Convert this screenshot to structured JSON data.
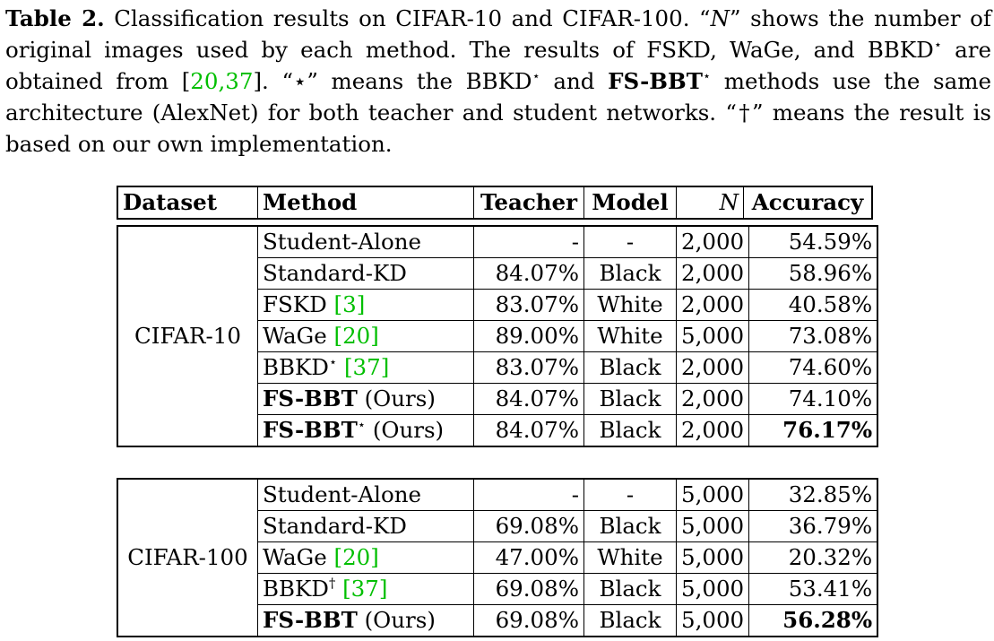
{
  "caption": {
    "label": "Table 2.",
    "text_1": "Classification results on CIFAR-10 and CIFAR-100. “",
    "n_symbol": "N",
    "text_2": "” shows the number of original images used by each method. The results of FSKD, WaGe, and BBKD",
    "star": "⋆",
    "text_3": " are obtained from [",
    "cite_a": "20",
    "sep": ",",
    "cite_b": "37",
    "text_4": "]. “",
    "text_5": "” means the BBKD",
    "text_6": " and ",
    "fs_bbt": "FS-BBT",
    "text_7": " methods use the same architecture (AlexNet) for both teacher and student networks. “",
    "dagger": "†",
    "text_8": "” means the result is based on our own implementation."
  },
  "header": {
    "dataset": "Dataset",
    "method": "Method",
    "teacher": "Teacher",
    "model": "Model",
    "n": "N",
    "accuracy": "Accuracy"
  },
  "groups": [
    {
      "dataset": "CIFAR-10",
      "rows": [
        {
          "method": "Student-Alone",
          "cite": "",
          "mark": "",
          "suffix": "",
          "bold": false,
          "teacher": "-",
          "model": "-",
          "n": "2,000",
          "accuracy": "54.59%"
        },
        {
          "method": "Standard-KD",
          "cite": "",
          "mark": "",
          "suffix": "",
          "bold": false,
          "teacher": "84.07%",
          "model": "Black",
          "n": "2,000",
          "accuracy": "58.96%"
        },
        {
          "method": "FSKD",
          "cite": "3",
          "mark": "",
          "suffix": "",
          "bold": false,
          "teacher": "83.07%",
          "model": "White",
          "n": "2,000",
          "accuracy": "40.58%"
        },
        {
          "method": "WaGe",
          "cite": "20",
          "mark": "",
          "suffix": "",
          "bold": false,
          "teacher": "89.00%",
          "model": "White",
          "n": "5,000",
          "accuracy": "73.08%"
        },
        {
          "method": "BBKD",
          "cite": "37",
          "mark": "⋆",
          "suffix": "",
          "bold": false,
          "teacher": "83.07%",
          "model": "Black",
          "n": "2,000",
          "accuracy": "74.60%"
        },
        {
          "method": "FS-BBT",
          "cite": "",
          "mark": "",
          "suffix": "(Ours)",
          "bold": true,
          "teacher": "84.07%",
          "model": "Black",
          "n": "2,000",
          "accuracy": "74.10%"
        },
        {
          "method": "FS-BBT",
          "cite": "",
          "mark": "⋆",
          "suffix": "(Ours)",
          "bold": true,
          "teacher": "84.07%",
          "model": "Black",
          "n": "2,000",
          "accuracy": "76.17%",
          "best": true
        }
      ]
    },
    {
      "dataset": "CIFAR-100",
      "rows": [
        {
          "method": "Student-Alone",
          "cite": "",
          "mark": "",
          "suffix": "",
          "bold": false,
          "teacher": "-",
          "model": "-",
          "n": "5,000",
          "accuracy": "32.85%"
        },
        {
          "method": "Standard-KD",
          "cite": "",
          "mark": "",
          "suffix": "",
          "bold": false,
          "teacher": "69.08%",
          "model": "Black",
          "n": "5,000",
          "accuracy": "36.79%"
        },
        {
          "method": "WaGe",
          "cite": "20",
          "mark": "",
          "suffix": "",
          "bold": false,
          "teacher": "47.00%",
          "model": "White",
          "n": "5,000",
          "accuracy": "20.32%"
        },
        {
          "method": "BBKD",
          "cite": "37",
          "mark": "†",
          "suffix": "",
          "bold": false,
          "teacher": "69.08%",
          "model": "Black",
          "n": "5,000",
          "accuracy": "53.41%"
        },
        {
          "method": "FS-BBT",
          "cite": "",
          "mark": "",
          "suffix": "(Ours)",
          "bold": true,
          "teacher": "69.08%",
          "model": "Black",
          "n": "5,000",
          "accuracy": "56.28%",
          "best": true
        }
      ]
    }
  ],
  "colors": {
    "citation": "#00bf00",
    "text": "#000000"
  }
}
